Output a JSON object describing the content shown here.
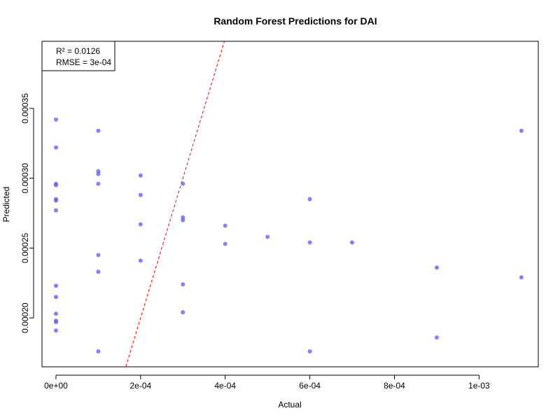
{
  "chart_data": {
    "type": "scatter",
    "title": "Random Forest Predictions for DAI",
    "xlabel": "Actual",
    "ylabel": "Predicted",
    "xlim": [
      -3.3e-05,
      0.00114
    ],
    "ylim": [
      0.000165,
      0.000398
    ],
    "x_ticks": [
      0,
      0.0002,
      0.0004,
      0.0006,
      0.0008,
      0.001
    ],
    "x_tick_labels": [
      "0e+00",
      "2e-04",
      "4e-04",
      "6e-04",
      "8e-04",
      "1e-03"
    ],
    "y_ticks": [
      0.0002,
      0.00025,
      0.0003,
      0.00035
    ],
    "y_tick_labels": [
      "0.00020",
      "0.00025",
      "0.00030",
      "0.00035"
    ],
    "legend": {
      "position": "top-left",
      "entries": [
        "R² = 0.0126",
        "RMSE = 3e-04"
      ]
    },
    "reference_line": {
      "type": "y = x",
      "color": "#ff0000",
      "style": "dashed"
    },
    "point_color": "#5a5af5",
    "points": [
      {
        "x": 0,
        "y": 0.000342
      },
      {
        "x": 0,
        "y": 0.000322
      },
      {
        "x": 0,
        "y": 0.000296
      },
      {
        "x": 0,
        "y": 0.000295
      },
      {
        "x": 0,
        "y": 0.000285
      },
      {
        "x": 0,
        "y": 0.000284
      },
      {
        "x": 0,
        "y": 0.000277
      },
      {
        "x": 0,
        "y": 0.000223
      },
      {
        "x": 0,
        "y": 0.000215
      },
      {
        "x": 0,
        "y": 0.000203
      },
      {
        "x": 0,
        "y": 0.000198
      },
      {
        "x": 0,
        "y": 0.000197
      },
      {
        "x": 0,
        "y": 0.000191
      },
      {
        "x": 0.0001,
        "y": 0.000334
      },
      {
        "x": 0.0001,
        "y": 0.000305
      },
      {
        "x": 0.0001,
        "y": 0.000303
      },
      {
        "x": 0.0001,
        "y": 0.000296
      },
      {
        "x": 0.0001,
        "y": 0.000245
      },
      {
        "x": 0.0001,
        "y": 0.000233
      },
      {
        "x": 0.0001,
        "y": 0.000176
      },
      {
        "x": 0.0002,
        "y": 0.000302
      },
      {
        "x": 0.0002,
        "y": 0.000288
      },
      {
        "x": 0.0002,
        "y": 0.000267
      },
      {
        "x": 0.0002,
        "y": 0.000241
      },
      {
        "x": 0.0003,
        "y": 0.000296
      },
      {
        "x": 0.0003,
        "y": 0.000272
      },
      {
        "x": 0.0003,
        "y": 0.00027
      },
      {
        "x": 0.0003,
        "y": 0.000224
      },
      {
        "x": 0.0003,
        "y": 0.000204
      },
      {
        "x": 0.0004,
        "y": 0.000266
      },
      {
        "x": 0.0004,
        "y": 0.000253
      },
      {
        "x": 0.0005,
        "y": 0.000258
      },
      {
        "x": 0.0006,
        "y": 0.000285
      },
      {
        "x": 0.0006,
        "y": 0.000254
      },
      {
        "x": 0.0006,
        "y": 0.000176
      },
      {
        "x": 0.0007,
        "y": 0.000254
      },
      {
        "x": 0.0009,
        "y": 0.000236
      },
      {
        "x": 0.0009,
        "y": 0.000186
      },
      {
        "x": 0.0011,
        "y": 0.000334
      },
      {
        "x": 0.0011,
        "y": 0.000229
      }
    ]
  }
}
